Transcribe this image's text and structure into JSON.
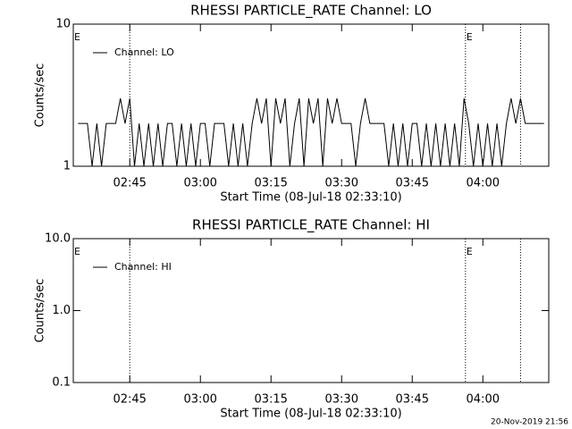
{
  "chart_data": [
    {
      "type": "line",
      "title": "RHESSI PARTICLE_RATE Channel: LO",
      "x_label": "Start Time (08-Jul-18 02:33:10)",
      "y_label": "Counts/sec",
      "xlim": [
        33,
        134
      ],
      "xticks": [
        {
          "value": 45,
          "label": "02:45"
        },
        {
          "value": 60,
          "label": "03:00"
        },
        {
          "value": 75,
          "label": "03:15"
        },
        {
          "value": 90,
          "label": "03:30"
        },
        {
          "value": 105,
          "label": "03:45"
        },
        {
          "value": 120,
          "label": "04:00"
        }
      ],
      "ylim": [
        1,
        10
      ],
      "yticks": [
        1,
        10
      ],
      "log_y": true,
      "legend": "upper left",
      "vlines": [
        45,
        116.3,
        128
      ],
      "annotations": [
        {
          "x": 33,
          "text": "E"
        },
        {
          "x": 116.3,
          "text": "E"
        }
      ],
      "x": [
        34,
        35,
        36,
        37,
        38,
        39,
        40,
        41,
        42,
        43,
        44,
        45,
        46,
        47,
        48,
        49,
        50,
        51,
        52,
        53,
        54,
        55,
        56,
        57,
        58,
        59,
        60,
        61,
        62,
        63,
        64,
        65,
        66,
        67,
        68,
        69,
        70,
        71,
        72,
        73,
        74,
        75,
        76,
        77,
        78,
        79,
        80,
        81,
        82,
        83,
        84,
        85,
        86,
        87,
        88,
        89,
        90,
        91,
        92,
        93,
        94,
        95,
        96,
        97,
        98,
        99,
        100,
        101,
        102,
        103,
        104,
        105,
        106,
        107,
        108,
        109,
        110,
        111,
        112,
        113,
        114,
        115,
        116,
        117,
        118,
        119,
        120,
        121,
        122,
        123,
        124,
        125,
        126,
        127,
        128,
        129,
        130,
        131,
        132,
        133
      ],
      "series": [
        {
          "name": "Channel: LO",
          "color": "#000000",
          "values": [
            2,
            2,
            2,
            1,
            2,
            1,
            2,
            2,
            2,
            3,
            2,
            3,
            1,
            2,
            1,
            2,
            1,
            2,
            1,
            2,
            2,
            1,
            2,
            1,
            2,
            1,
            2,
            2,
            1,
            2,
            2,
            2,
            1,
            2,
            1,
            2,
            1,
            2,
            3,
            2,
            3,
            1,
            3,
            2,
            3,
            1,
            2,
            3,
            1,
            3,
            2,
            3,
            1,
            3,
            2,
            3,
            2,
            2,
            2,
            1,
            2,
            3,
            2,
            2,
            2,
            2,
            1,
            2,
            1,
            2,
            1,
            2,
            2,
            1,
            2,
            1,
            2,
            1,
            2,
            1,
            2,
            1,
            3,
            2,
            1,
            2,
            1,
            2,
            1,
            2,
            1,
            2,
            3,
            2,
            3,
            2,
            2,
            2,
            2,
            2
          ]
        }
      ]
    },
    {
      "type": "line",
      "title": "RHESSI PARTICLE_RATE Channel: HI",
      "x_label": "Start Time (08-Jul-18 02:33:10)",
      "y_label": "Counts/sec",
      "xlim": [
        33,
        134
      ],
      "xticks": [
        {
          "value": 45,
          "label": "02:45"
        },
        {
          "value": 60,
          "label": "03:00"
        },
        {
          "value": 75,
          "label": "03:15"
        },
        {
          "value": 90,
          "label": "03:30"
        },
        {
          "value": 105,
          "label": "03:45"
        },
        {
          "value": 120,
          "label": "04:00"
        }
      ],
      "ylim": [
        0.1,
        10
      ],
      "yticks": [
        {
          "value": 0.1,
          "label": "0.1"
        },
        {
          "value": 1,
          "label": "1.0"
        },
        {
          "value": 10,
          "label": "10.0"
        }
      ],
      "log_y": true,
      "legend": "upper left",
      "vlines": [
        45,
        116.3,
        128
      ],
      "annotations": [
        {
          "x": 33,
          "text": "E"
        },
        {
          "x": 116.3,
          "text": "E"
        }
      ],
      "x": [],
      "series": [
        {
          "name": "Channel: HI",
          "color": "#000000",
          "values": []
        }
      ]
    }
  ],
  "footer": "20-Nov-2019 21:56"
}
